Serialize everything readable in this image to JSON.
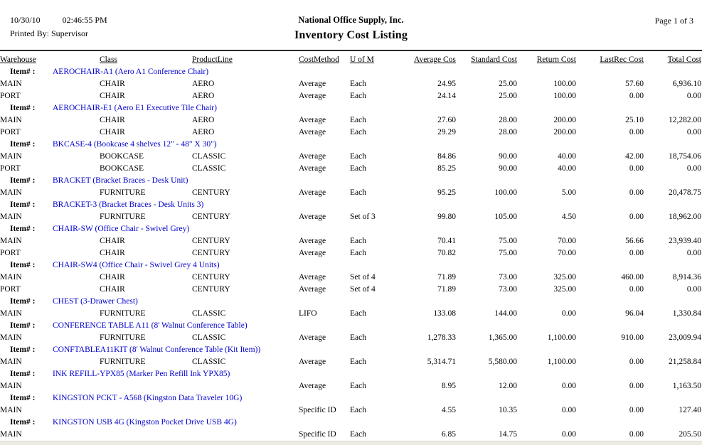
{
  "header": {
    "date": "10/30/10",
    "time": "02:46:55 PM",
    "printed_by": "Printed By: Supervisor",
    "company": "National Office Supply, Inc.",
    "title": "Inventory Cost Listing",
    "page": "Page 1 of 3"
  },
  "colors": {
    "item_link_blue": "#0000cc",
    "text": "#000000",
    "bottom_strip": "#eceae3"
  },
  "columns": [
    "Warehouse",
    "Class",
    "ProductLine",
    "CostMethod",
    "U of M",
    "Average Cost",
    "Standard Cost",
    "Return Cost",
    "LastRec Cost",
    "Total Cost"
  ],
  "item_label": "Item# :",
  "items": [
    {
      "label": "AEROCHAIR-A1 (Aero A1 Conference Chair)",
      "rows": [
        {
          "warehouse": "MAIN",
          "class": "CHAIR",
          "product_line": "AERO",
          "cost_method": "Average",
          "uofm": "Each",
          "average_cost": "24.95",
          "standard_cost": "25.00",
          "return_cost": "100.00",
          "lastrec_cost": "57.60",
          "total_cost": "6,936.10"
        },
        {
          "warehouse": "PORT",
          "class": "CHAIR",
          "product_line": "AERO",
          "cost_method": "Average",
          "uofm": "Each",
          "average_cost": "24.14",
          "standard_cost": "25.00",
          "return_cost": "100.00",
          "lastrec_cost": "0.00",
          "total_cost": "0.00"
        }
      ]
    },
    {
      "label": "AEROCHAIR-E1 (Aero E1 Executive Tile Chair)",
      "rows": [
        {
          "warehouse": "MAIN",
          "class": "CHAIR",
          "product_line": "AERO",
          "cost_method": "Average",
          "uofm": "Each",
          "average_cost": "27.60",
          "standard_cost": "28.00",
          "return_cost": "200.00",
          "lastrec_cost": "25.10",
          "total_cost": "12,282.00"
        },
        {
          "warehouse": "PORT",
          "class": "CHAIR",
          "product_line": "AERO",
          "cost_method": "Average",
          "uofm": "Each",
          "average_cost": "29.29",
          "standard_cost": "28.00",
          "return_cost": "200.00",
          "lastrec_cost": "0.00",
          "total_cost": "0.00"
        }
      ]
    },
    {
      "label": "BKCASE-4 (Bookcase 4 shelves 12\" - 48\" X 30\")",
      "rows": [
        {
          "warehouse": "MAIN",
          "class": "BOOKCASE",
          "product_line": "CLASSIC",
          "cost_method": "Average",
          "uofm": "Each",
          "average_cost": "84.86",
          "standard_cost": "90.00",
          "return_cost": "40.00",
          "lastrec_cost": "42.00",
          "total_cost": "18,754.06"
        },
        {
          "warehouse": "PORT",
          "class": "BOOKCASE",
          "product_line": "CLASSIC",
          "cost_method": "Average",
          "uofm": "Each",
          "average_cost": "85.25",
          "standard_cost": "90.00",
          "return_cost": "40.00",
          "lastrec_cost": "0.00",
          "total_cost": "0.00"
        }
      ]
    },
    {
      "label": "BRACKET (Bracket Braces - Desk Unit)",
      "rows": [
        {
          "warehouse": "MAIN",
          "class": "FURNITURE",
          "product_line": "CENTURY",
          "cost_method": "Average",
          "uofm": "Each",
          "average_cost": "95.25",
          "standard_cost": "100.00",
          "return_cost": "5.00",
          "lastrec_cost": "0.00",
          "total_cost": "20,478.75"
        }
      ]
    },
    {
      "label": "BRACKET-3 (Bracket Braces - Desk Units 3)",
      "rows": [
        {
          "warehouse": "MAIN",
          "class": "FURNITURE",
          "product_line": "CENTURY",
          "cost_method": "Average",
          "uofm": "Set of 3",
          "average_cost": "99.80",
          "standard_cost": "105.00",
          "return_cost": "4.50",
          "lastrec_cost": "0.00",
          "total_cost": "18,962.00"
        }
      ]
    },
    {
      "label": "CHAIR-SW (Office Chair - Swivel Grey)",
      "rows": [
        {
          "warehouse": "MAIN",
          "class": "CHAIR",
          "product_line": "CENTURY",
          "cost_method": "Average",
          "uofm": "Each",
          "average_cost": "70.41",
          "standard_cost": "75.00",
          "return_cost": "70.00",
          "lastrec_cost": "56.66",
          "total_cost": "23,939.40"
        },
        {
          "warehouse": "PORT",
          "class": "CHAIR",
          "product_line": "CENTURY",
          "cost_method": "Average",
          "uofm": "Each",
          "average_cost": "70.82",
          "standard_cost": "75.00",
          "return_cost": "70.00",
          "lastrec_cost": "0.00",
          "total_cost": "0.00"
        }
      ]
    },
    {
      "label": "CHAIR-SW4 (Office Chair - Swivel Grey 4 Units)",
      "rows": [
        {
          "warehouse": "MAIN",
          "class": "CHAIR",
          "product_line": "CENTURY",
          "cost_method": "Average",
          "uofm": "Set of 4",
          "average_cost": "71.89",
          "standard_cost": "73.00",
          "return_cost": "325.00",
          "lastrec_cost": "460.00",
          "total_cost": "8,914.36"
        },
        {
          "warehouse": "PORT",
          "class": "CHAIR",
          "product_line": "CENTURY",
          "cost_method": "Average",
          "uofm": "Set of 4",
          "average_cost": "71.89",
          "standard_cost": "73.00",
          "return_cost": "325.00",
          "lastrec_cost": "0.00",
          "total_cost": "0.00"
        }
      ]
    },
    {
      "label": "CHEST (3-Drawer Chest)",
      "rows": [
        {
          "warehouse": "MAIN",
          "class": "FURNITURE",
          "product_line": "CLASSIC",
          "cost_method": "LIFO",
          "uofm": "Each",
          "average_cost": "133.08",
          "standard_cost": "144.00",
          "return_cost": "0.00",
          "lastrec_cost": "96.04",
          "total_cost": "1,330.84"
        }
      ]
    },
    {
      "label": "CONFERENCE TABLE A11 (8' Walnut Conference Table)",
      "rows": [
        {
          "warehouse": "MAIN",
          "class": "FURNITURE",
          "product_line": "CLASSIC",
          "cost_method": "Average",
          "uofm": "Each",
          "average_cost": "1,278.33",
          "standard_cost": "1,365.00",
          "return_cost": "1,100.00",
          "lastrec_cost": "910.00",
          "total_cost": "23,009.94"
        }
      ]
    },
    {
      "label": "CONFTABLEA11KIT (8' Walnut Conference Table (Kit Item))",
      "rows": [
        {
          "warehouse": "MAIN",
          "class": "FURNITURE",
          "product_line": "CLASSIC",
          "cost_method": "Average",
          "uofm": "Each",
          "average_cost": "5,314.71",
          "standard_cost": "5,580.00",
          "return_cost": "1,100.00",
          "lastrec_cost": "0.00",
          "total_cost": "21,258.84"
        }
      ]
    },
    {
      "label": "INK REFILL-YPX85 (Marker Pen Refill Ink YPX85)",
      "rows": [
        {
          "warehouse": "MAIN",
          "class": "",
          "product_line": "",
          "cost_method": "Average",
          "uofm": "Each",
          "average_cost": "8.95",
          "standard_cost": "12.00",
          "return_cost": "0.00",
          "lastrec_cost": "0.00",
          "total_cost": "1,163.50"
        }
      ]
    },
    {
      "label": "KINGSTON PCKT - A568 (Kingston Data Traveler 10G)",
      "rows": [
        {
          "warehouse": "MAIN",
          "class": "",
          "product_line": "",
          "cost_method": "Specific ID",
          "uofm": "Each",
          "average_cost": "4.55",
          "standard_cost": "10.35",
          "return_cost": "0.00",
          "lastrec_cost": "0.00",
          "total_cost": "127.40"
        }
      ]
    },
    {
      "label": "KINGSTON USB 4G (Kingston Pocket Drive USB 4G)",
      "rows": [
        {
          "warehouse": "MAIN",
          "class": "",
          "product_line": "",
          "cost_method": "Specific ID",
          "uofm": "Each",
          "average_cost": "6.85",
          "standard_cost": "14.75",
          "return_cost": "0.00",
          "lastrec_cost": "0.00",
          "total_cost": "205.50"
        }
      ]
    }
  ]
}
